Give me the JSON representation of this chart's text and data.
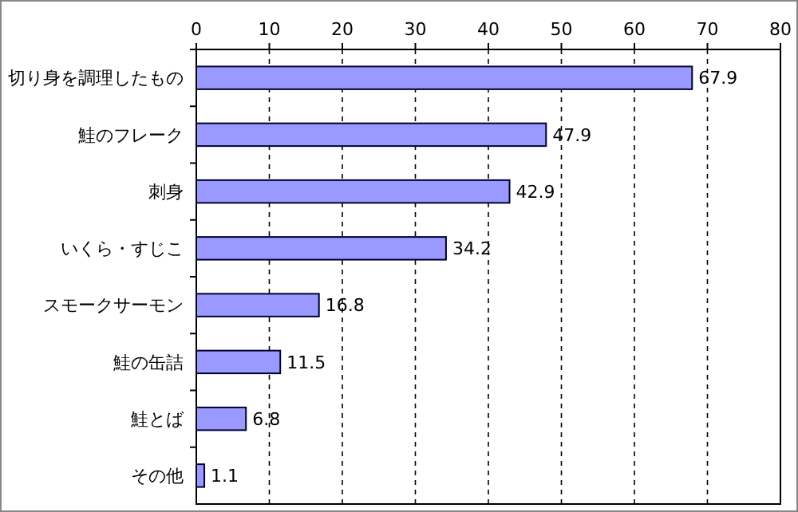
{
  "chart_data": {
    "type": "bar",
    "orientation": "horizontal",
    "categories": [
      "切り身を調理したもの",
      "鮭のフレーク",
      "刺身",
      "いくら・すじこ",
      "スモークサーモン",
      "鮭の缶詰",
      "鮭とば",
      "その他"
    ],
    "values": [
      67.9,
      47.9,
      42.9,
      34.2,
      16.8,
      11.5,
      6.8,
      1.1
    ],
    "color": "#9999ff",
    "xlim": [
      0,
      80
    ],
    "xticks": [
      0,
      10,
      20,
      30,
      40,
      50,
      60,
      70,
      80
    ],
    "grid": "x",
    "data_labels": true
  }
}
